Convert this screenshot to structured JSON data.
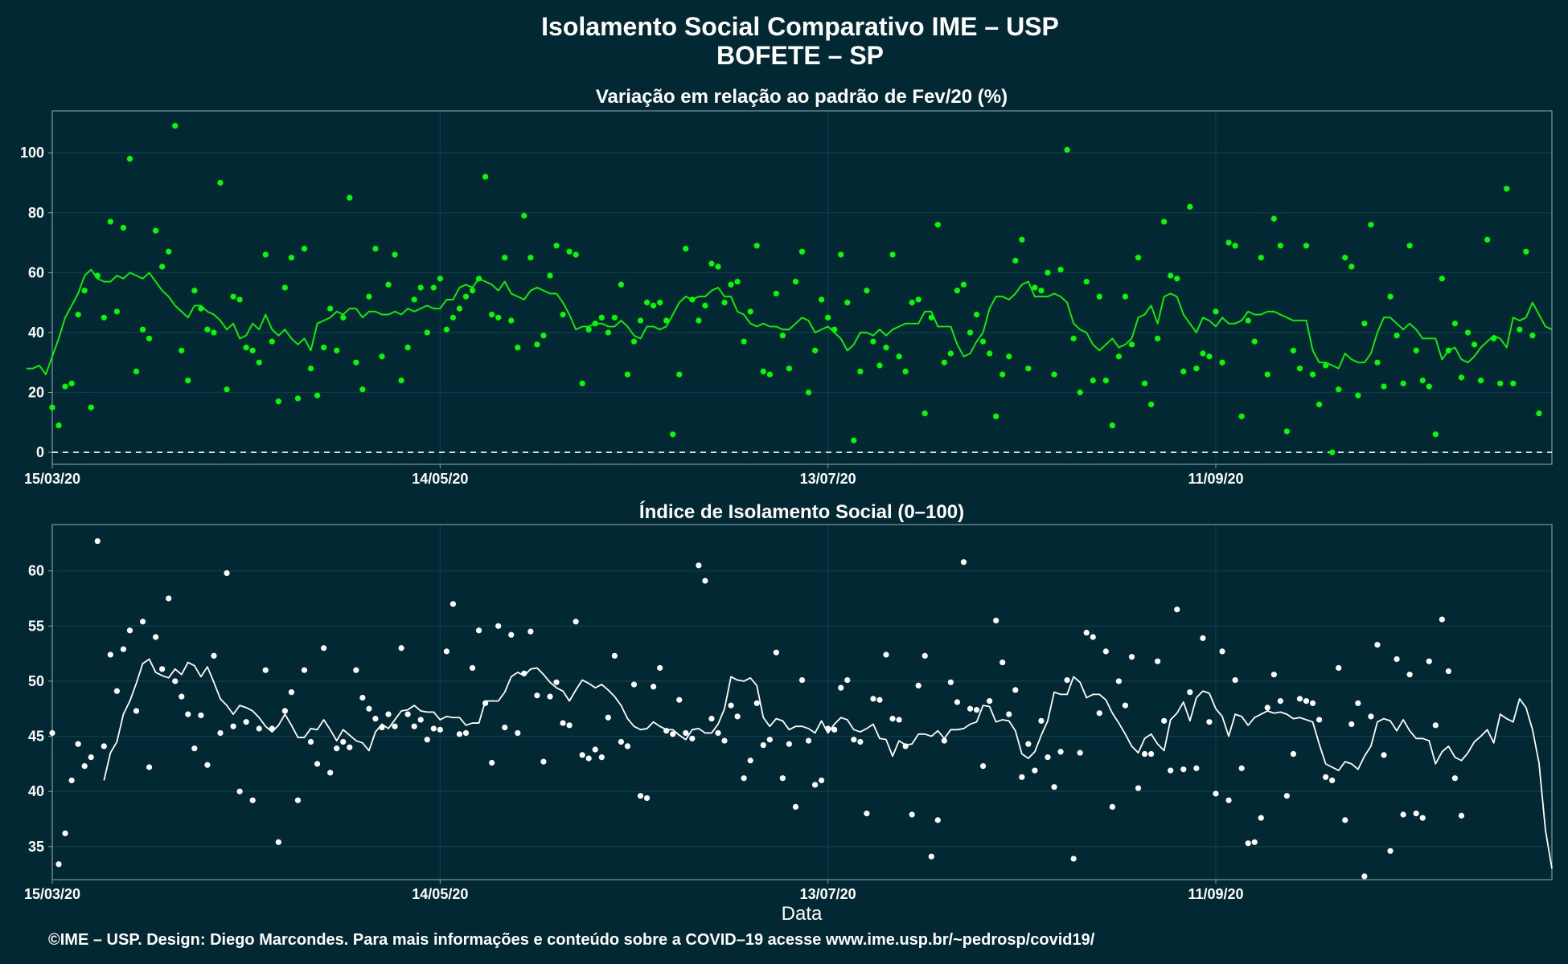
{
  "title": "Isolamento Social Comparativo IME – USP",
  "subtitle": "BOFETE – SP",
  "xlabel": "Data",
  "caption": "©IME – USP. Design: Diego Marcondes. Para mais informações e conteúdo sobre a COVID–19 acesse www.ime.usp.br/~pedrosp/covid19/",
  "colors": {
    "background": "#022833",
    "grid": "#0d3d48",
    "series_top": "#00ff00",
    "series_bottom": "#ffffff",
    "baseline": "#ffffff"
  },
  "chart_data": [
    {
      "type": "scatter",
      "title": "Variação em relação ao padrão de Fev/20 (%)",
      "xlabel": "",
      "ylabel": "",
      "x_start": "2020-03-15",
      "x_end": "2020-11-02",
      "x_ticks": [
        "15/03/20",
        "14/05/20",
        "13/07/20",
        "11/09/20"
      ],
      "y_ticks": [
        0,
        20,
        40,
        60,
        80,
        100
      ],
      "ylim": [
        -4,
        114
      ],
      "reference_line": 0,
      "grid": true,
      "series": [
        {
          "style": "points",
          "values": [
            15,
            9,
            22,
            23,
            46,
            54,
            15,
            59,
            45,
            77,
            47,
            75,
            98,
            27,
            41,
            38,
            74,
            62,
            67,
            109,
            34,
            24,
            54,
            48,
            41,
            40,
            90,
            21,
            52,
            51,
            35,
            34,
            30,
            66,
            37,
            17,
            55,
            65,
            18,
            68,
            28,
            19,
            35,
            48,
            34,
            45,
            85,
            30,
            21,
            52,
            68,
            32,
            56,
            66,
            24,
            35,
            51,
            55,
            40,
            55,
            58,
            41,
            45,
            48,
            52,
            54,
            58,
            92,
            46,
            45,
            65,
            44,
            35,
            79,
            65,
            36,
            39,
            59,
            69,
            46,
            67,
            66,
            23,
            41,
            43,
            45,
            40,
            45,
            56,
            26,
            37,
            44,
            50,
            49,
            50,
            44,
            6,
            26,
            68,
            51,
            44,
            49,
            63,
            62,
            50,
            56,
            57,
            37,
            47,
            69,
            27,
            26,
            53,
            39,
            28,
            57,
            67,
            20,
            34,
            51,
            45,
            41,
            66,
            50,
            4,
            27,
            54,
            37,
            29,
            35,
            66,
            32,
            27,
            50,
            51,
            13,
            45,
            76,
            30,
            33,
            54,
            56,
            40,
            46,
            37,
            33,
            12,
            26,
            32,
            64,
            71,
            28,
            55,
            54,
            60,
            26,
            61,
            101,
            38,
            20,
            57,
            24,
            52,
            24,
            9,
            32,
            52,
            36,
            65,
            23,
            16,
            38,
            77,
            59,
            58,
            27,
            82,
            28,
            33,
            32,
            47,
            30,
            70,
            69,
            12,
            44,
            37,
            65,
            26,
            78,
            69,
            7,
            34,
            28,
            69,
            26,
            16,
            29,
            0,
            21,
            65,
            62,
            19,
            43,
            76,
            30,
            22,
            52,
            39,
            23,
            69,
            34,
            24,
            22,
            6,
            58,
            34,
            43,
            25,
            40,
            36,
            24,
            71,
            38,
            23,
            88,
            23,
            41,
            67,
            39,
            13
          ]
        },
        {
          "style": "line",
          "values": [
            28,
            28,
            29,
            26,
            32,
            38,
            45,
            49,
            53,
            59,
            61,
            58,
            57,
            57,
            59,
            58,
            60,
            59,
            58,
            60,
            57,
            54,
            52,
            49,
            47,
            45,
            49,
            49,
            47,
            46,
            44,
            41,
            43,
            38,
            39,
            43,
            41,
            46,
            41,
            39,
            41,
            38,
            36,
            38,
            34,
            43,
            44,
            45,
            47,
            46,
            48,
            48,
            45,
            47,
            47,
            46,
            46,
            47,
            46,
            48,
            47,
            48,
            49,
            48,
            48,
            51,
            51,
            55,
            56,
            55,
            58,
            57,
            56,
            54,
            57,
            53,
            52,
            51,
            54,
            55,
            54,
            53,
            53,
            50,
            46,
            41,
            42,
            42,
            43,
            43,
            42,
            42,
            44,
            42,
            39,
            38,
            42,
            42,
            41,
            42,
            46,
            50,
            52,
            51,
            52,
            52,
            54,
            55,
            52,
            52,
            47,
            46,
            43,
            42,
            43,
            42,
            42,
            41,
            41,
            43,
            45,
            44,
            40,
            41,
            42,
            40,
            38,
            34,
            36,
            40,
            40,
            39,
            41,
            39,
            41,
            42,
            43,
            43,
            43,
            47,
            47,
            42,
            42,
            42,
            36,
            32,
            33,
            37,
            40,
            48,
            52,
            52,
            51,
            53,
            56,
            57,
            52,
            52,
            52,
            53,
            52,
            50,
            43,
            41,
            40,
            36,
            34,
            36,
            38,
            35,
            36,
            38,
            45,
            46,
            49,
            43,
            52,
            53,
            52,
            46,
            43,
            40,
            45,
            44,
            42,
            45,
            43,
            43,
            44,
            47,
            46,
            46,
            47,
            47,
            46,
            45,
            44,
            44,
            44,
            34,
            30,
            30,
            29,
            28,
            33,
            31,
            30,
            30,
            33,
            40,
            45,
            45,
            43,
            41,
            43,
            41,
            38,
            38,
            38,
            31,
            34,
            35,
            31,
            30,
            32,
            35,
            37,
            39,
            38,
            35,
            45,
            44,
            45,
            50,
            46,
            42,
            41
          ]
        }
      ]
    },
    {
      "type": "scatter",
      "title": "Índice de Isolamento Social (0–100)",
      "xlabel": "Data",
      "ylabel": "",
      "x_start": "2020-03-15",
      "x_end": "2020-11-02",
      "x_ticks": [
        "15/03/20",
        "14/05/20",
        "13/07/20",
        "11/09/20"
      ],
      "y_ticks": [
        35,
        40,
        45,
        50,
        55,
        60
      ],
      "ylim": [
        32,
        64.2
      ],
      "grid": true,
      "series": [
        {
          "style": "points",
          "values": [
            45.3,
            33.4,
            36.2,
            41.0,
            44.3,
            42.3,
            43.1,
            62.7,
            44.1,
            52.4,
            49.1,
            52.9,
            54.6,
            47.3,
            55.4,
            42.2,
            54.0,
            51.1,
            57.5,
            50.0,
            48.6,
            47.0,
            43.9,
            46.9,
            42.4,
            52.3,
            45.3,
            59.8,
            45.9,
            40.0,
            46.3,
            39.2,
            45.7,
            51.0,
            45.7,
            35.4,
            47.3,
            49.0,
            39.2,
            51.0,
            44.5,
            42.5,
            53.0,
            41.7,
            43.9,
            44.5,
            44.0,
            51.0,
            48.5,
            47.5,
            46.6,
            45.8,
            47.0,
            45.9,
            53.0,
            47.0,
            45.9,
            46.5,
            44.7,
            45.7,
            45.6,
            52.7,
            57.0,
            45.2,
            45.3,
            51.2,
            54.6,
            48.0,
            42.6,
            55.0,
            45.8,
            54.2,
            45.3,
            50.7,
            54.5,
            48.7,
            42.7,
            48.6,
            49.9,
            46.2,
            46.0,
            55.4,
            43.3,
            43.0,
            43.8,
            43.1,
            46.7,
            52.3,
            44.5,
            44.1,
            49.7,
            39.6,
            39.4,
            49.5,
            51.2,
            45.5,
            45.2,
            48.3,
            45.3,
            44.8,
            60.5,
            59.1,
            46.6,
            45.3,
            44.6,
            47.8,
            46.8,
            41.2,
            42.8,
            48.0,
            44.2,
            44.7,
            52.6,
            41.2,
            44.3,
            38.6,
            50.1,
            44.6,
            40.6,
            41.0,
            45.7,
            45.6,
            49.4,
            50.1,
            44.7,
            44.5,
            38.0,
            48.4,
            48.3,
            52.4,
            46.6,
            46.5,
            44.1,
            37.9,
            49.6,
            52.3,
            34.1,
            37.4,
            44.6,
            49.9,
            48.1,
            60.8,
            47.5,
            47.4,
            42.3,
            48.2,
            55.5,
            51.7,
            47.0,
            49.2,
            41.3,
            44.3,
            41.9,
            46.4,
            43.1,
            40.4,
            43.6,
            50.1,
            33.9,
            43.5,
            54.4,
            54.0,
            47.1,
            52.7,
            38.6,
            50.0,
            47.8,
            52.2,
            40.3,
            43.4,
            43.4,
            51.8,
            46.4,
            41.9,
            56.5,
            42.0,
            49.0,
            42.1,
            53.9,
            46.3,
            39.8,
            52.7,
            39.2,
            50.1,
            42.1,
            35.3,
            35.4,
            37.6,
            47.6,
            50.6,
            48.2,
            39.6,
            43.4,
            48.4,
            48.2,
            48.0,
            46.5,
            41.3,
            41.0,
            51.2,
            37.4,
            46.1,
            48.0,
            32.3,
            46.8,
            53.3,
            43.3,
            34.6,
            52.0,
            37.9,
            50.6,
            38.0,
            37.6,
            51.8,
            46.0,
            55.6,
            50.9,
            41.2,
            37.8
          ]
        },
        {
          "style": "line",
          "values": [
            41.0,
            43.5,
            44.5,
            47.0,
            48.2,
            49.8,
            51.6,
            52.0,
            50.8,
            50.5,
            50.3,
            51.1,
            50.6,
            51.7,
            51.4,
            50.4,
            51.3,
            49.9,
            48.4,
            47.8,
            47.0,
            47.8,
            47.6,
            47.3,
            46.7,
            45.9,
            45.4,
            46.0,
            47.0,
            46.0,
            44.9,
            44.9,
            45.7,
            45.6,
            46.5,
            45.6,
            44.6,
            45.6,
            45.1,
            44.6,
            44.4,
            43.7,
            45.4,
            46.1,
            45.7,
            46.5,
            47.3,
            47.4,
            47.8,
            47.3,
            47.2,
            47.2,
            46.5,
            46.8,
            46.7,
            46.7,
            46.0,
            46.2,
            46.2,
            48.2,
            48.2,
            48.2,
            49.0,
            50.4,
            50.8,
            50.5,
            51.1,
            51.2,
            50.6,
            49.9,
            49.4,
            49.1,
            48.2,
            49.2,
            50.1,
            49.8,
            49.4,
            49.7,
            49.2,
            48.6,
            47.8,
            46.6,
            45.9,
            45.6,
            45.7,
            46.3,
            45.9,
            45.6,
            45.6,
            45.1,
            44.7,
            45.6,
            45.7,
            45.3,
            45.3,
            46.1,
            47.5,
            50.4,
            50.1,
            50.0,
            50.3,
            49.6,
            46.7,
            45.9,
            46.6,
            46.4,
            45.6,
            45.9,
            45.9,
            45.7,
            45.3,
            46.4,
            45.3,
            46.1,
            46.7,
            46.5,
            45.6,
            45.4,
            45.7,
            46.1,
            44.8,
            44.7,
            43.2,
            44.6,
            44.2,
            44.3,
            45.2,
            45.2,
            45.0,
            45.5,
            44.8,
            45.6,
            45.6,
            45.7,
            46.1,
            46.3,
            47.8,
            47.7,
            46.3,
            46.5,
            46.4,
            45.5,
            43.4,
            43.0,
            43.6,
            45.1,
            46.4,
            49.0,
            48.8,
            48.8,
            50.4,
            49.9,
            48.5,
            48.8,
            48.8,
            48.3,
            47.1,
            46.2,
            45.2,
            44.1,
            43.5,
            44.8,
            45.2,
            44.3,
            43.7,
            46.5,
            47.1,
            48.1,
            46.4,
            48.5,
            49.1,
            48.9,
            47.5,
            46.8,
            45.0,
            47.0,
            46.8,
            46.0,
            46.7,
            47.0,
            47.3,
            47.1,
            47.2,
            47.0,
            46.6,
            46.7,
            46.5,
            46.3,
            44.3,
            42.5,
            42.2,
            41.9,
            42.7,
            42.5,
            42.0,
            43.2,
            44.1,
            46.3,
            46.6,
            46.4,
            45.5,
            46.5,
            45.5,
            44.8,
            44.8,
            44.6,
            42.5,
            43.6,
            44.1,
            43.1,
            42.8,
            43.5,
            44.5,
            45.0,
            45.6,
            44.4,
            47.0,
            46.6,
            46.3,
            48.4,
            47.6,
            45.6,
            42.6,
            36.5,
            33.0
          ]
        }
      ]
    }
  ]
}
